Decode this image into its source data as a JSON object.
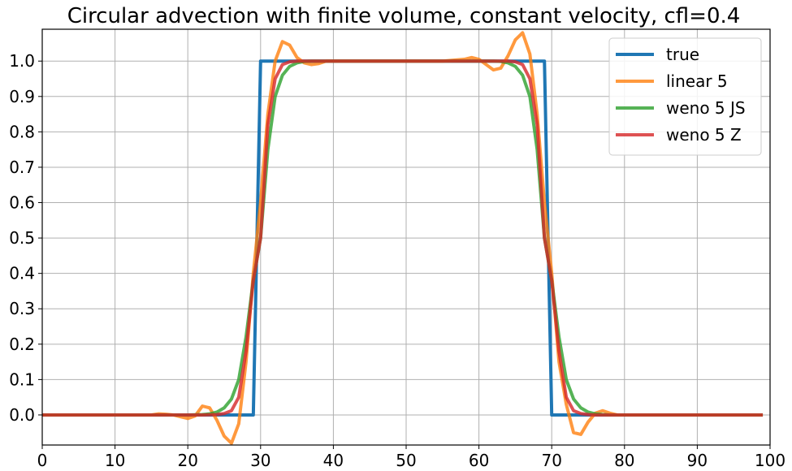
{
  "chart_data": {
    "type": "line",
    "title": "Circular advection with finite volume, constant velocity, cfl=0.4",
    "xlabel": "",
    "ylabel": "",
    "xlim": [
      0,
      100
    ],
    "ylim": [
      -0.085,
      1.09
    ],
    "xticks": [
      0,
      10,
      20,
      30,
      40,
      50,
      60,
      70,
      80,
      90,
      100
    ],
    "yticks": [
      0.0,
      0.1,
      0.2,
      0.3,
      0.4,
      0.5,
      0.6,
      0.7,
      0.8,
      0.9,
      1.0
    ],
    "grid": true,
    "legend_position": "top-right",
    "series": [
      {
        "name": "true",
        "color": "#1f77b4",
        "x": [
          0,
          29,
          30,
          69,
          70,
          99
        ],
        "y": [
          0,
          0,
          1,
          1,
          0,
          0
        ]
      },
      {
        "name": "linear 5",
        "color": "#ff7f0e",
        "x": [
          0,
          5,
          10,
          15,
          16,
          17,
          18,
          19,
          20,
          21,
          22,
          23,
          24,
          25,
          26,
          27,
          28,
          29,
          30,
          31,
          32,
          33,
          34,
          35,
          36,
          37,
          38,
          39,
          40,
          45,
          50,
          55,
          58,
          59,
          60,
          61,
          62,
          63,
          64,
          65,
          66,
          67,
          68,
          69,
          70,
          71,
          72,
          73,
          74,
          75,
          76,
          77,
          78,
          79,
          80,
          85,
          90,
          95,
          99
        ],
        "y": [
          0,
          0,
          0,
          0,
          0.003,
          0.002,
          0,
          -0.005,
          -0.01,
          -0.003,
          0.025,
          0.02,
          -0.015,
          -0.06,
          -0.08,
          -0.025,
          0.15,
          0.4,
          0.6,
          0.85,
          1.0,
          1.055,
          1.045,
          1.01,
          0.995,
          0.99,
          0.993,
          1.0,
          1.0,
          1.0,
          1.0,
          1.0,
          1.005,
          1.01,
          1.005,
          0.99,
          0.975,
          0.98,
          1.015,
          1.06,
          1.08,
          1.02,
          0.85,
          0.6,
          0.4,
          0.15,
          0.03,
          -0.05,
          -0.055,
          -0.02,
          0.005,
          0.012,
          0.005,
          0,
          0,
          0,
          0,
          0,
          0
        ]
      },
      {
        "name": "weno 5 JS",
        "color": "#2ca02c",
        "x": [
          0,
          20,
          22,
          23,
          24,
          25,
          26,
          27,
          28,
          29,
          30,
          31,
          32,
          33,
          34,
          35,
          36,
          37,
          38,
          40,
          50,
          60,
          62,
          63,
          64,
          65,
          66,
          67,
          68,
          69,
          70,
          71,
          72,
          73,
          74,
          75,
          76,
          77,
          78,
          80,
          99
        ],
        "y": [
          0,
          0,
          0.001,
          0.003,
          0.008,
          0.02,
          0.045,
          0.1,
          0.22,
          0.38,
          0.5,
          0.75,
          0.9,
          0.96,
          0.985,
          0.995,
          0.999,
          1.0,
          1.0,
          1.0,
          1.0,
          1.0,
          1.0,
          0.999,
          0.995,
          0.985,
          0.96,
          0.9,
          0.75,
          0.5,
          0.38,
          0.22,
          0.1,
          0.045,
          0.02,
          0.008,
          0.003,
          0.001,
          0,
          0,
          0
        ]
      },
      {
        "name": "weno 5 Z",
        "color": "#d62728",
        "x": [
          0,
          22,
          24,
          25,
          26,
          27,
          28,
          29,
          30,
          31,
          32,
          33,
          34,
          35,
          36,
          37,
          40,
          50,
          60,
          63,
          64,
          65,
          66,
          67,
          68,
          69,
          70,
          71,
          72,
          73,
          74,
          75,
          76,
          77,
          80,
          99
        ],
        "y": [
          0,
          0,
          0.001,
          0.004,
          0.012,
          0.05,
          0.18,
          0.38,
          0.5,
          0.82,
          0.95,
          0.99,
          0.998,
          1.0,
          1.0,
          1.0,
          1.0,
          1.0,
          1.0,
          1.0,
          1.0,
          0.998,
          0.99,
          0.95,
          0.82,
          0.5,
          0.38,
          0.18,
          0.05,
          0.012,
          0.004,
          0.001,
          0,
          0,
          0,
          0
        ]
      }
    ]
  }
}
